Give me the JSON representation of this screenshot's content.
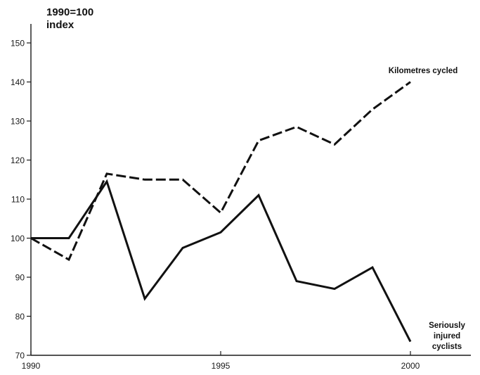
{
  "chart_data": {
    "type": "line",
    "title": "",
    "ylabel_lines": [
      "1990=100",
      "index"
    ],
    "xlabel": "",
    "xlim": [
      1990,
      2002
    ],
    "ylim": [
      70,
      155
    ],
    "x_ticks": [
      1990,
      1995,
      2000
    ],
    "y_ticks": [
      70,
      80,
      90,
      100,
      110,
      120,
      130,
      140,
      150
    ],
    "grid": false,
    "legend": "none",
    "series": [
      {
        "name": "Kilometres cycled",
        "style": "dashed",
        "color": "#111111",
        "x": [
          1990,
          1991,
          1992,
          1993,
          1994,
          1995,
          1996,
          1997,
          1998,
          1999,
          2000
        ],
        "values": [
          100,
          94.5,
          116.5,
          115,
          115,
          106.5,
          125,
          128.5,
          124,
          133,
          140
        ]
      },
      {
        "name": "Seriously injured cyclists",
        "style": "solid",
        "color": "#111111",
        "x": [
          1990,
          1991,
          1992,
          1993,
          1994,
          1995,
          1996,
          1997,
          1998,
          1999,
          2000
        ],
        "values": [
          100,
          100,
          114.5,
          84.5,
          97.5,
          101.5,
          111,
          89,
          87,
          92.5,
          73.5
        ]
      }
    ],
    "series_label_lines": [
      [
        "Kilometres cycled"
      ],
      [
        "Seriously",
        "injured",
        "cyclists"
      ]
    ]
  }
}
